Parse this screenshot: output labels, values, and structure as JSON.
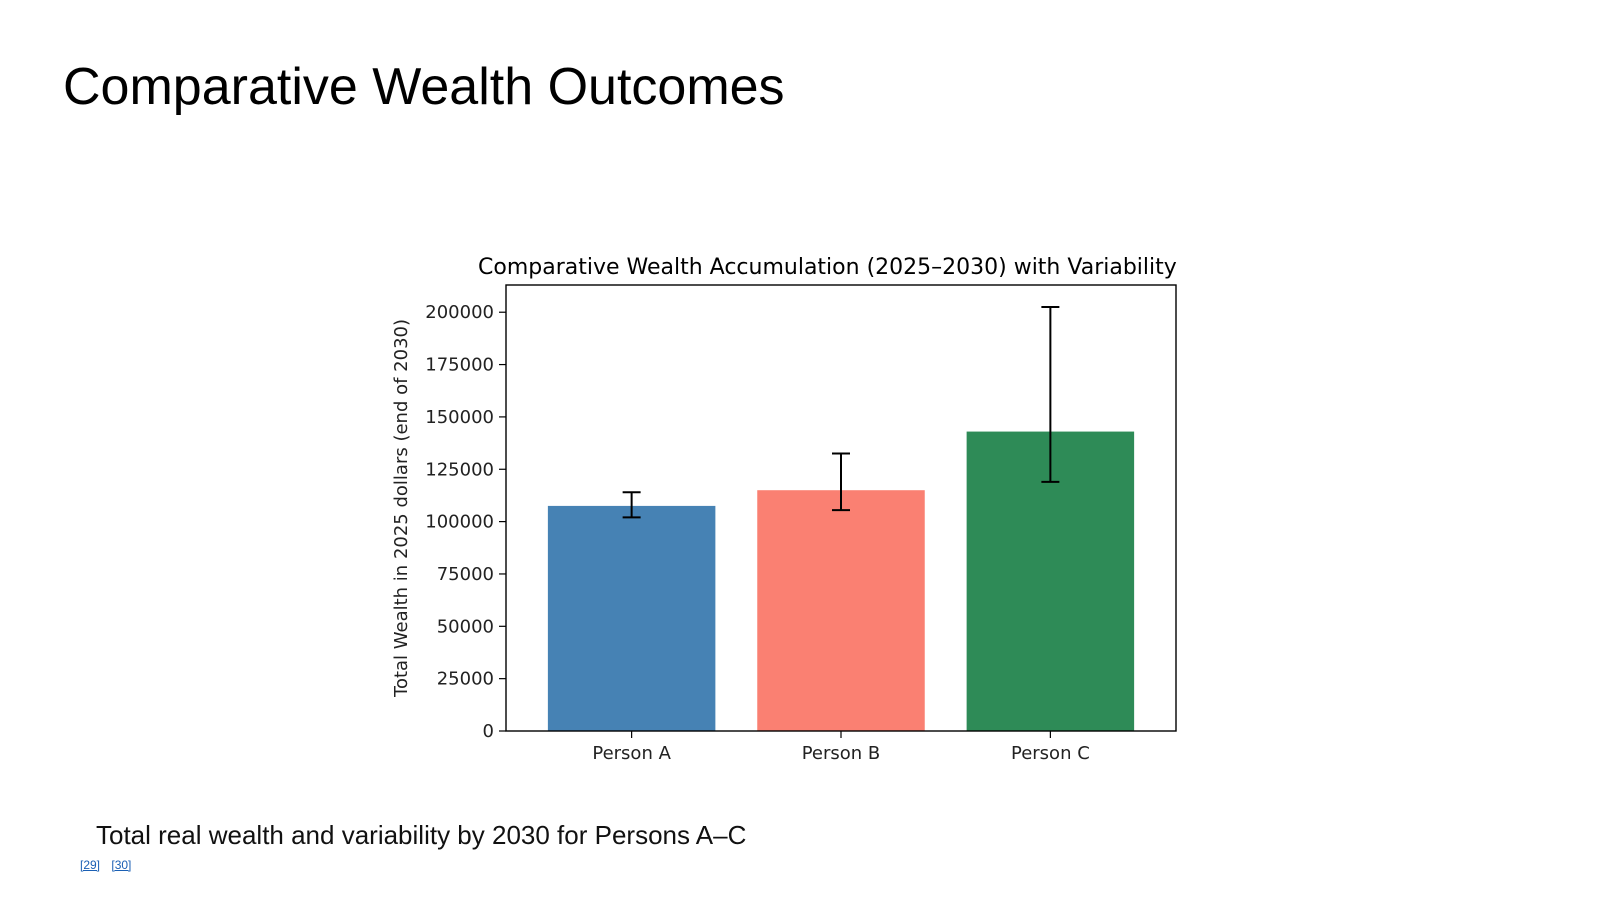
{
  "slide": {
    "title": "Comparative Wealth Outcomes",
    "caption": "Total real wealth and variability by 2030 for Persons A–C",
    "references": [
      "[29]",
      "[30]"
    ]
  },
  "chart_data": {
    "type": "bar",
    "title": "Comparative Wealth Accumulation (2025–2030) with Variability",
    "xlabel": "",
    "ylabel": "Total Wealth in 2025 dollars (end of 2030)",
    "categories": [
      "Person A",
      "Person B",
      "Person C"
    ],
    "values": [
      107500,
      115000,
      143000
    ],
    "error_low": [
      102000,
      105500,
      119000
    ],
    "error_high": [
      114000,
      132500,
      202500
    ],
    "colors": [
      "#4682b4",
      "#fa8072",
      "#2e8b57"
    ],
    "ylim": [
      0,
      213000
    ],
    "yticks": [
      0,
      25000,
      50000,
      75000,
      100000,
      125000,
      150000,
      175000,
      200000
    ],
    "grid": false,
    "legend": "none"
  }
}
